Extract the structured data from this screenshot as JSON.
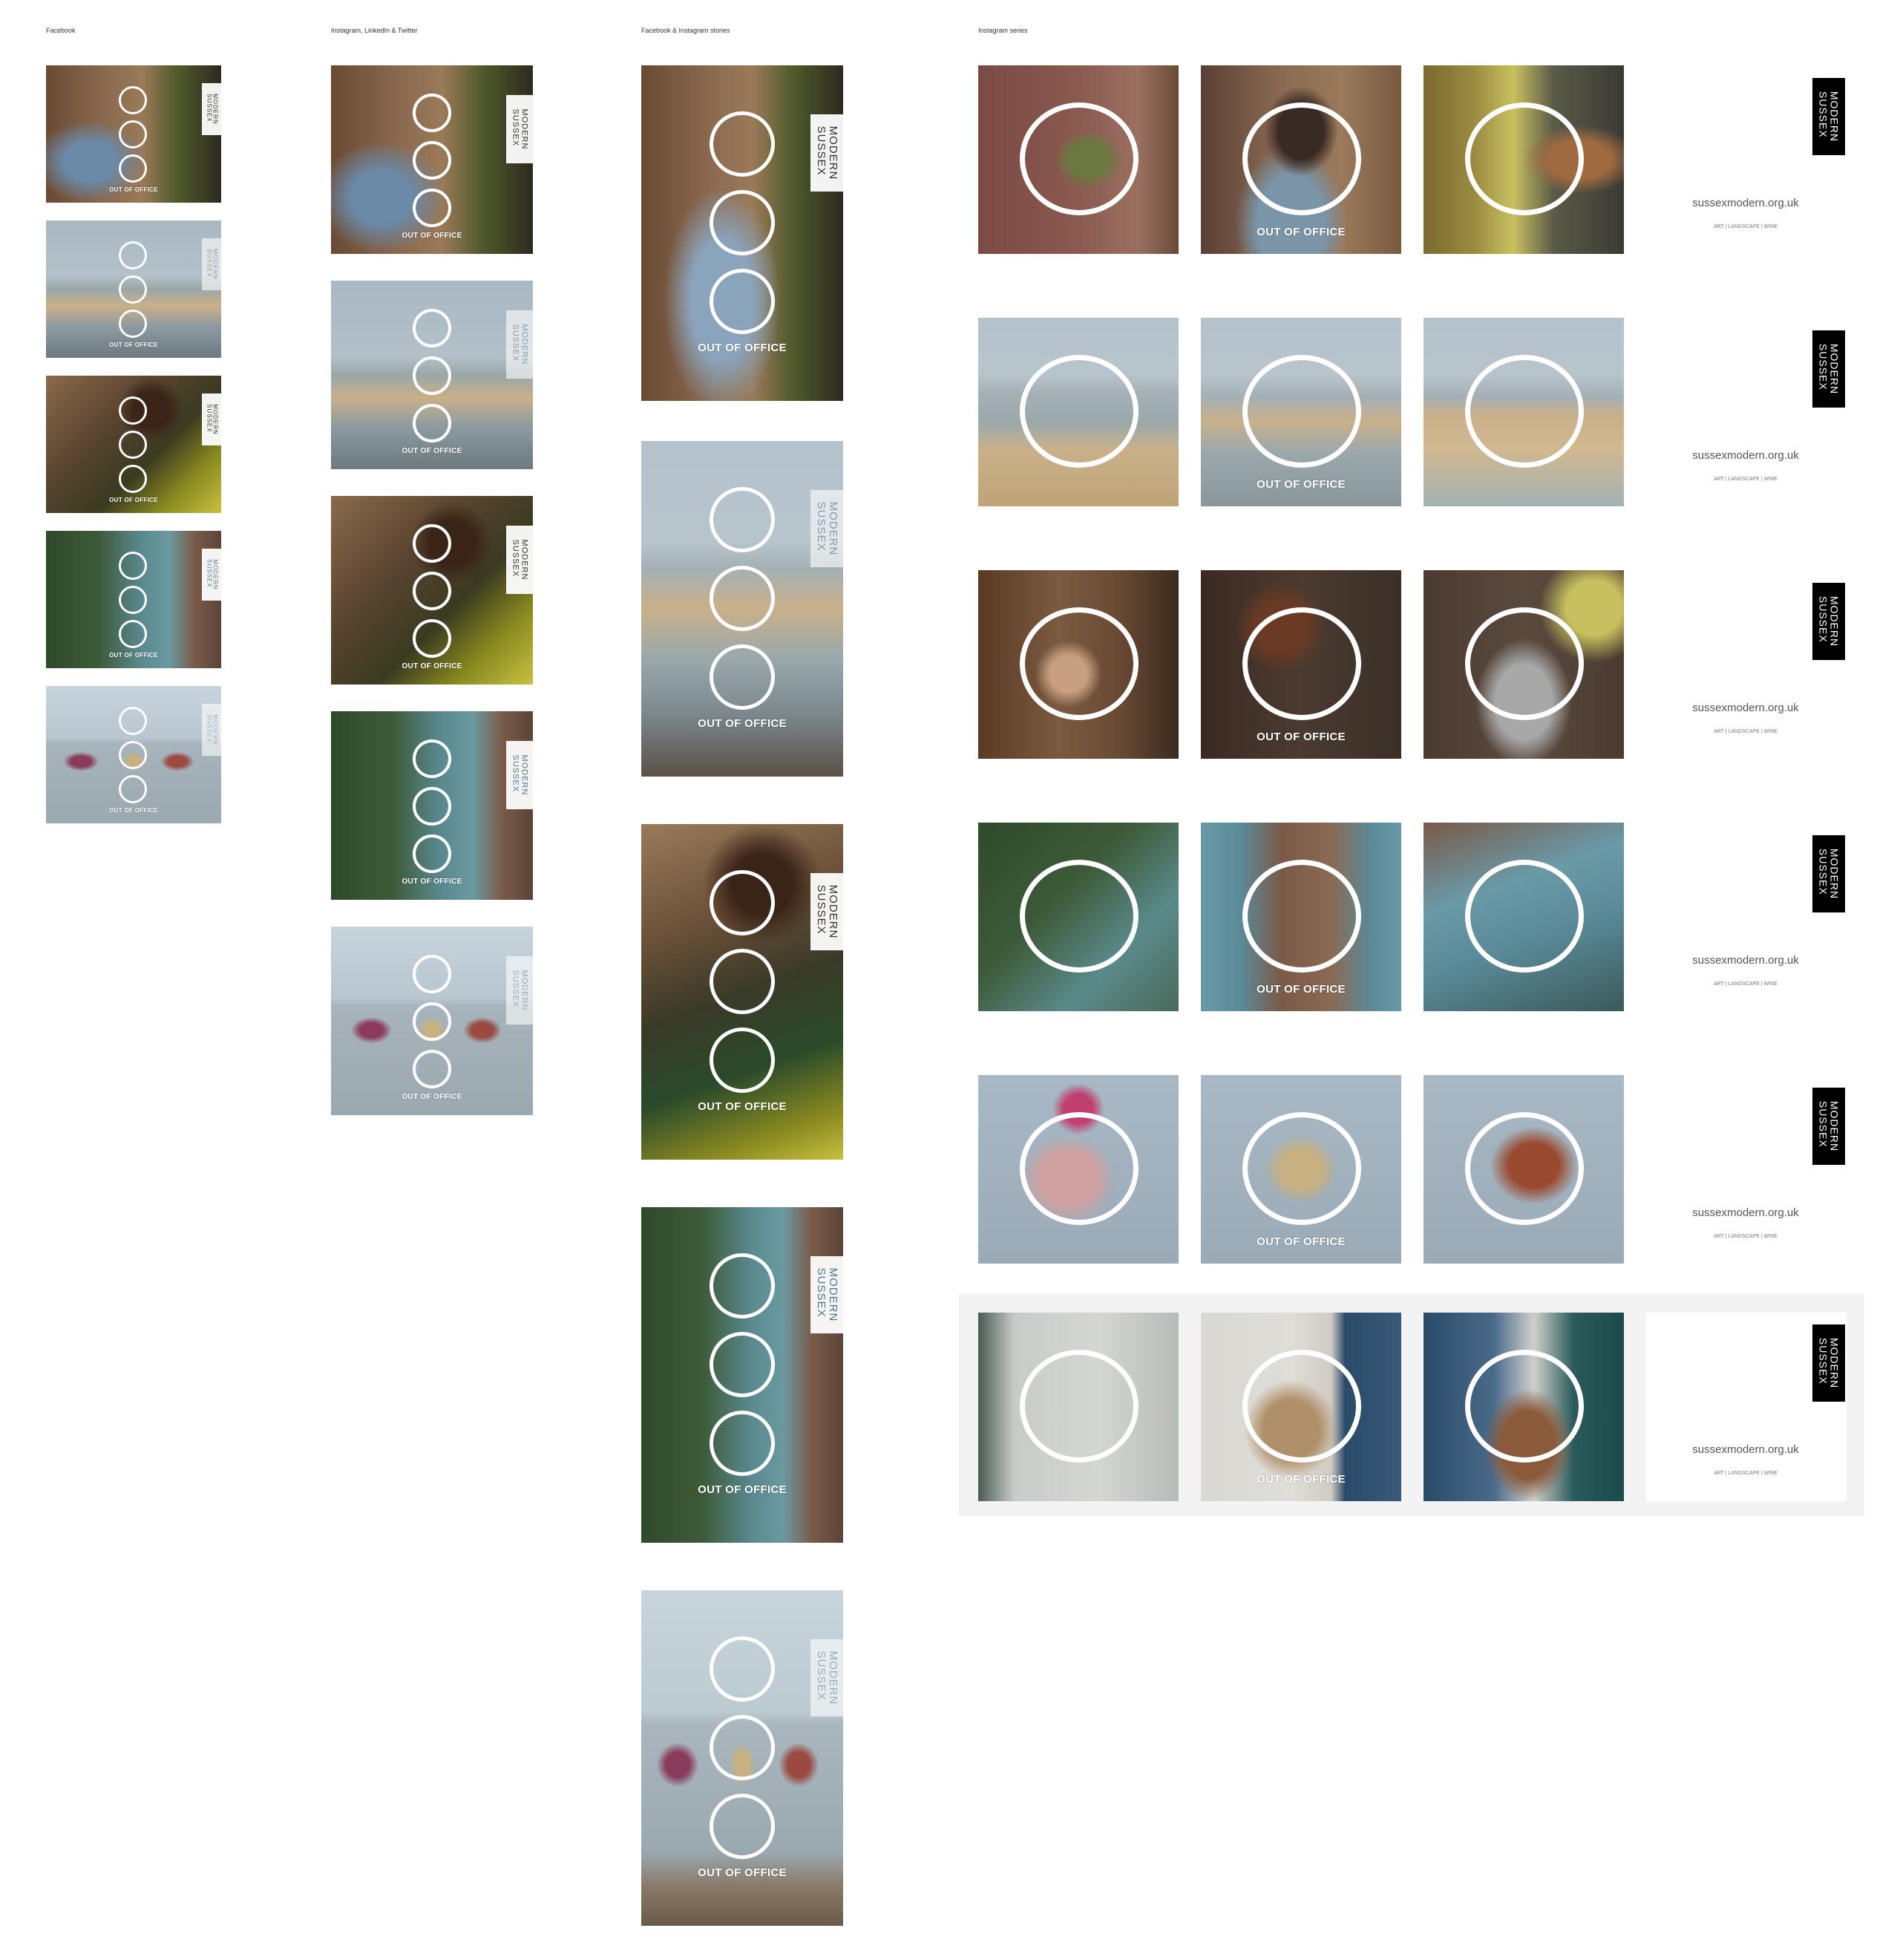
{
  "columns": {
    "facebook": "Facebook",
    "instagram_linkedin_twitter": "Instagram, LinkedIn & Twitter",
    "stories": "Facebook & Instagram stories",
    "series": "Instagram series"
  },
  "brand": {
    "line1": "MODERN",
    "line2": "SUSSEX",
    "url": "sussexmodern.org.uk",
    "tagline": "ART | LANDSCAPE | WINE"
  },
  "caption": "OUT OF OFFICE",
  "colors": {
    "background": "#ffffff",
    "ring": "#ffffff",
    "logo_block": "#000000",
    "band": "#f3f3f3"
  },
  "themes": [
    "studio interior",
    "beach",
    "vineyard gathering",
    "woodland architecture",
    "sea swimming",
    "gallery"
  ]
}
